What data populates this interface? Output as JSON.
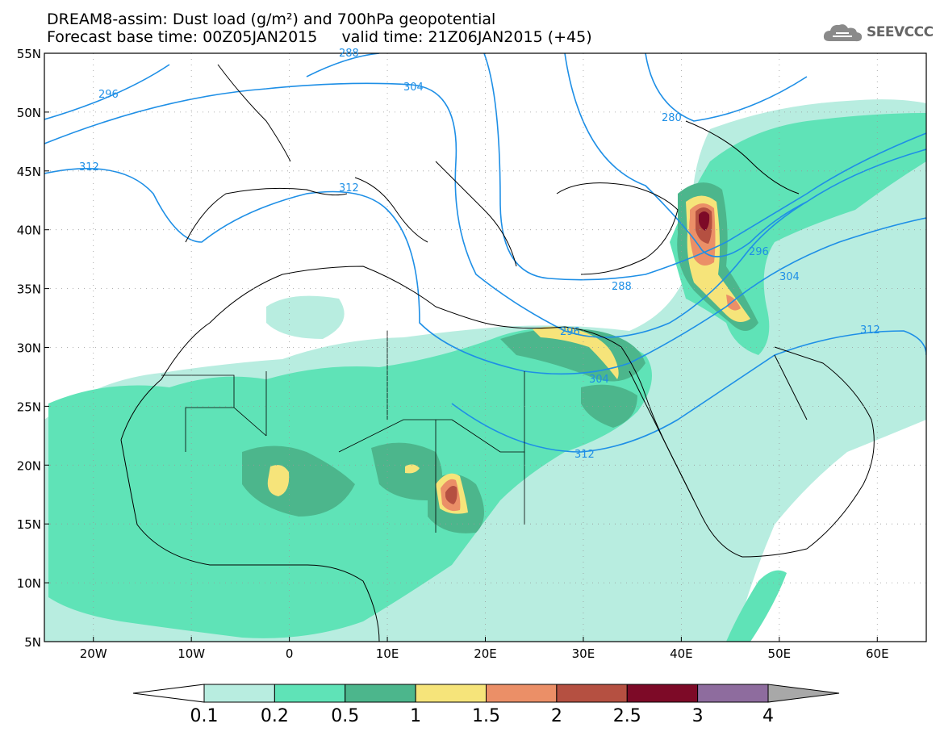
{
  "header": {
    "title_line1": "DREAM8-assim: Dust load (g/m²) and 700hPa geopotential",
    "title_line2": "Forecast base time: 00Z05JAN2015     valid time: 21Z06JAN2015 (+45)"
  },
  "logo": {
    "text": "SEEVCCC",
    "icon": "cloud-icon"
  },
  "map": {
    "lat_labels": [
      "55N",
      "50N",
      "45N",
      "40N",
      "35N",
      "30N",
      "25N",
      "20N",
      "15N",
      "10N",
      "5N"
    ],
    "lon_labels": [
      "20W",
      "10W",
      "0",
      "10E",
      "20E",
      "30E",
      "40E",
      "50E",
      "60E"
    ],
    "lat_range": [
      5,
      55
    ],
    "lon_range": [
      -25,
      65
    ],
    "contour_labels": [
      "288",
      "296",
      "304",
      "312",
      "312",
      "280",
      "296",
      "304",
      "312",
      "288",
      "296",
      "304",
      "312"
    ]
  },
  "colorbar": {
    "labels": [
      "0.1",
      "0.2",
      "0.5",
      "1",
      "1.5",
      "2",
      "2.5",
      "3",
      "4"
    ],
    "colors": [
      "#ffffff",
      "#b8ede0",
      "#5fe3b7",
      "#4cb68c",
      "#f6e47a",
      "#eb8f67",
      "#b55041",
      "#7d0a27",
      "#8e6c9e",
      "#a8a8a8"
    ]
  },
  "palette": {
    "contour": "#1e8fe6",
    "land_border": "#000000"
  }
}
